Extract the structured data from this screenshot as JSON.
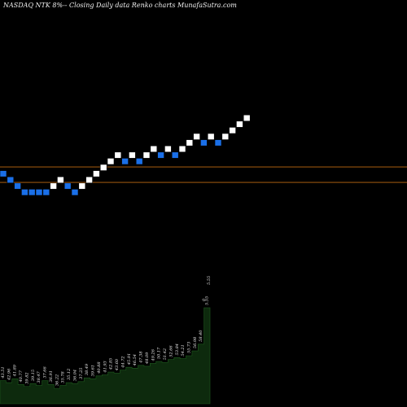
{
  "header": {
    "title": "NASDAQ NTK 8%--  Closing Daily data  Renko  charts MunafaSutra.com"
  },
  "colors": {
    "background": "#000000",
    "up_brick": "#ffffff",
    "down_brick": "#1a6fe8",
    "brick_outline": "#000000",
    "reference_line": "#c06a12",
    "volume_fill": "#0d2a0d",
    "volume_stroke": "#1e5a1e"
  },
  "chart_data": {
    "type": "renko",
    "title": "NASDAQ NTK 8%--  Closing Daily data  Renko  charts MunafaSutra.com",
    "bricks": [
      {
        "level": 13,
        "dir": "down"
      },
      {
        "level": 12,
        "dir": "down"
      },
      {
        "level": 11,
        "dir": "down"
      },
      {
        "level": 10,
        "dir": "down"
      },
      {
        "level": 10,
        "dir": "down"
      },
      {
        "level": 10,
        "dir": "down"
      },
      {
        "level": 10,
        "dir": "down"
      },
      {
        "level": 11,
        "dir": "up"
      },
      {
        "level": 12,
        "dir": "up"
      },
      {
        "level": 11,
        "dir": "down"
      },
      {
        "level": 10,
        "dir": "down"
      },
      {
        "level": 11,
        "dir": "up"
      },
      {
        "level": 12,
        "dir": "up"
      },
      {
        "level": 13,
        "dir": "up"
      },
      {
        "level": 14,
        "dir": "up"
      },
      {
        "level": 15,
        "dir": "up"
      },
      {
        "level": 16,
        "dir": "up"
      },
      {
        "level": 15,
        "dir": "down"
      },
      {
        "level": 16,
        "dir": "up"
      },
      {
        "level": 15,
        "dir": "down"
      },
      {
        "level": 16,
        "dir": "up"
      },
      {
        "level": 17,
        "dir": "up"
      },
      {
        "level": 16,
        "dir": "down"
      },
      {
        "level": 17,
        "dir": "up"
      },
      {
        "level": 16,
        "dir": "down"
      },
      {
        "level": 17,
        "dir": "up"
      },
      {
        "level": 18,
        "dir": "up"
      },
      {
        "level": 19,
        "dir": "up"
      },
      {
        "level": 18,
        "dir": "down"
      },
      {
        "level": 19,
        "dir": "up"
      },
      {
        "level": 18,
        "dir": "down"
      },
      {
        "level": 19,
        "dir": "up"
      },
      {
        "level": 20,
        "dir": "up"
      },
      {
        "level": 21,
        "dir": "up"
      },
      {
        "level": 22,
        "dir": "up"
      }
    ],
    "reference_levels": [
      13.6,
      11.1
    ],
    "volume": [
      24,
      22,
      26,
      20,
      18,
      21,
      19,
      24,
      20,
      16,
      19,
      22,
      21,
      23,
      27,
      26,
      29,
      30,
      33,
      32,
      35,
      38,
      37,
      40,
      39,
      42,
      44,
      43,
      46,
      48,
      47,
      50,
      55,
      62,
      100
    ],
    "volume_labels": [
      "43.51",
      "42.96",
      "41.89",
      "40.77",
      "39.82",
      "39.15",
      "38.47",
      "37.66",
      "36.91",
      "36.22",
      "35.78",
      "35.12",
      "36.04",
      "37.25",
      "38.49",
      "39.61",
      "40.88",
      "41.93",
      "42.85",
      "43.60",
      "44.72",
      "45.91",
      "46.54",
      "47.38",
      "48.09",
      "49.26",
      "50.17",
      "51.42",
      "52.66",
      "53.84",
      "54.21",
      "55.73",
      "56.98",
      "58.40",
      "5.55"
    ],
    "volume_labels_extra": [
      "0",
      "5.55"
    ],
    "grid": false
  }
}
